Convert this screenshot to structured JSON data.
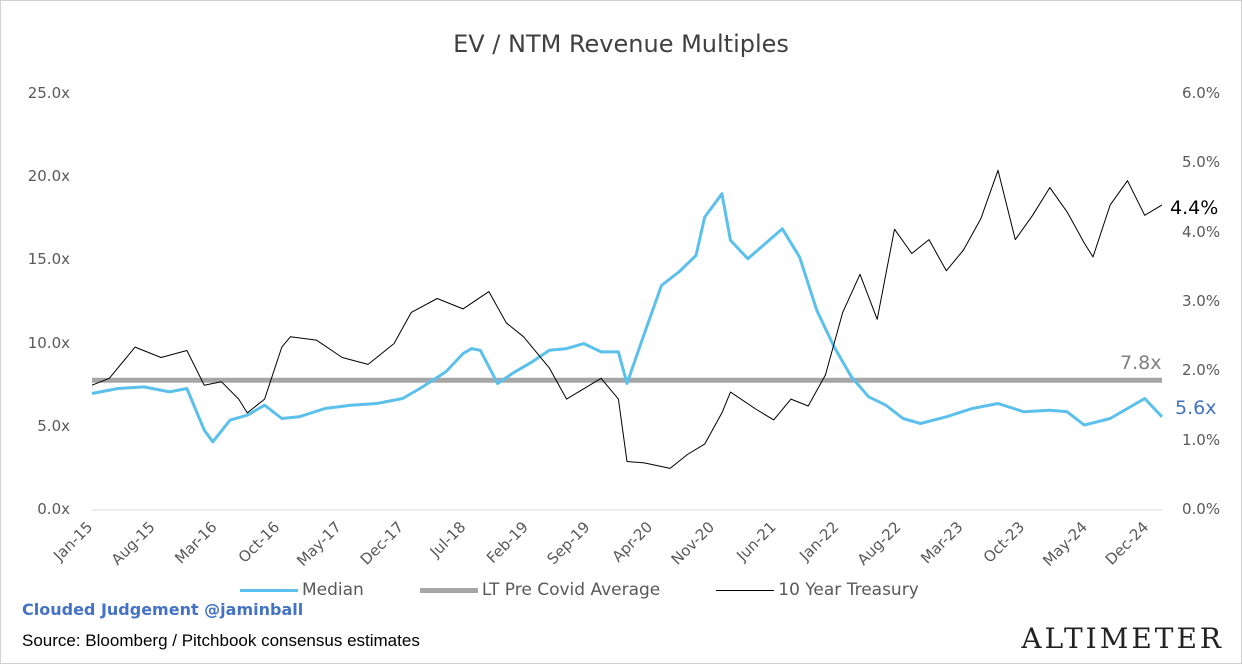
{
  "chart_data": {
    "type": "line",
    "title": "EV / NTM Revenue Multiples",
    "y_left": {
      "ticks": [
        "25.0x",
        "20.0x",
        "15.0x",
        "10.0x",
        "5.0x",
        "0.0x"
      ],
      "range": [
        0,
        25
      ]
    },
    "y_right": {
      "ticks": [
        "6.0%",
        "5.0%",
        "4.0%",
        "3.0%",
        "2.0%",
        "1.0%",
        "0.0%"
      ],
      "range": [
        0,
        6
      ]
    },
    "x_ticks": [
      "Jan-15",
      "Aug-15",
      "Mar-16",
      "Oct-16",
      "May-17",
      "Dec-17",
      "Jul-18",
      "Feb-19",
      "Sep-19",
      "Apr-20",
      "Nov-20",
      "Jun-21",
      "Jan-22",
      "Aug-22",
      "Mar-23",
      "Oct-23",
      "May-24",
      "Dec-24"
    ],
    "x_range": [
      "2015-01",
      "2025-05"
    ],
    "series": [
      {
        "name": "Median",
        "axis": "left",
        "color": "#5bc0eb",
        "end_label": "5.6x",
        "points": [
          [
            "2015-01",
            7.0
          ],
          [
            "2015-04",
            7.3
          ],
          [
            "2015-07",
            7.4
          ],
          [
            "2015-10",
            7.1
          ],
          [
            "2015-12",
            7.3
          ],
          [
            "2016-02",
            4.8
          ],
          [
            "2016-03",
            4.1
          ],
          [
            "2016-05",
            5.4
          ],
          [
            "2016-07",
            5.7
          ],
          [
            "2016-09",
            6.3
          ],
          [
            "2016-11",
            5.5
          ],
          [
            "2017-01",
            5.6
          ],
          [
            "2017-04",
            6.1
          ],
          [
            "2017-07",
            6.3
          ],
          [
            "2017-10",
            6.4
          ],
          [
            "2018-01",
            6.7
          ],
          [
            "2018-03",
            7.3
          ],
          [
            "2018-06",
            8.3
          ],
          [
            "2018-08",
            9.4
          ],
          [
            "2018-09",
            9.7
          ],
          [
            "2018-10",
            9.6
          ],
          [
            "2018-12",
            7.6
          ],
          [
            "2019-02",
            8.3
          ],
          [
            "2019-04",
            8.9
          ],
          [
            "2019-06",
            9.6
          ],
          [
            "2019-08",
            9.7
          ],
          [
            "2019-10",
            10.0
          ],
          [
            "2019-12",
            9.5
          ],
          [
            "2020-02",
            9.5
          ],
          [
            "2020-03",
            7.6
          ],
          [
            "2020-05",
            10.6
          ],
          [
            "2020-07",
            13.5
          ],
          [
            "2020-09",
            14.3
          ],
          [
            "2020-11",
            15.3
          ],
          [
            "2020-12",
            17.6
          ],
          [
            "2021-02",
            19.0
          ],
          [
            "2021-03",
            16.2
          ],
          [
            "2021-05",
            15.1
          ],
          [
            "2021-07",
            16.0
          ],
          [
            "2021-09",
            16.9
          ],
          [
            "2021-11",
            15.2
          ],
          [
            "2022-01",
            12.0
          ],
          [
            "2022-03",
            9.8
          ],
          [
            "2022-05",
            8.0
          ],
          [
            "2022-07",
            6.8
          ],
          [
            "2022-09",
            6.3
          ],
          [
            "2022-11",
            5.5
          ],
          [
            "2023-01",
            5.2
          ],
          [
            "2023-04",
            5.6
          ],
          [
            "2023-07",
            6.1
          ],
          [
            "2023-10",
            6.4
          ],
          [
            "2024-01",
            5.9
          ],
          [
            "2024-04",
            6.0
          ],
          [
            "2024-06",
            5.9
          ],
          [
            "2024-08",
            5.1
          ],
          [
            "2024-11",
            5.5
          ],
          [
            "2025-01",
            6.1
          ],
          [
            "2025-03",
            6.7
          ],
          [
            "2025-05",
            5.6
          ]
        ]
      },
      {
        "name": "LT Pre Covid Average",
        "axis": "left",
        "color": "#a6a6a6",
        "end_label": "7.8x",
        "points": [
          [
            "2015-01",
            7.8
          ],
          [
            "2025-05",
            7.8
          ]
        ]
      },
      {
        "name": "10 Year Treasury",
        "axis": "right",
        "color": "#000000",
        "end_label": "4.4%",
        "points": [
          [
            "2015-01",
            1.8
          ],
          [
            "2015-03",
            1.9
          ],
          [
            "2015-06",
            2.35
          ],
          [
            "2015-09",
            2.2
          ],
          [
            "2015-12",
            2.3
          ],
          [
            "2016-02",
            1.8
          ],
          [
            "2016-04",
            1.85
          ],
          [
            "2016-06",
            1.6
          ],
          [
            "2016-07",
            1.4
          ],
          [
            "2016-09",
            1.6
          ],
          [
            "2016-11",
            2.35
          ],
          [
            "2016-12",
            2.5
          ],
          [
            "2017-03",
            2.45
          ],
          [
            "2017-06",
            2.2
          ],
          [
            "2017-09",
            2.1
          ],
          [
            "2017-12",
            2.4
          ],
          [
            "2018-02",
            2.85
          ],
          [
            "2018-05",
            3.05
          ],
          [
            "2018-08",
            2.9
          ],
          [
            "2018-11",
            3.15
          ],
          [
            "2019-01",
            2.7
          ],
          [
            "2019-03",
            2.5
          ],
          [
            "2019-06",
            2.05
          ],
          [
            "2019-08",
            1.6
          ],
          [
            "2019-10",
            1.75
          ],
          [
            "2019-12",
            1.9
          ],
          [
            "2020-02",
            1.6
          ],
          [
            "2020-03",
            0.7
          ],
          [
            "2020-05",
            0.68
          ],
          [
            "2020-08",
            0.6
          ],
          [
            "2020-10",
            0.8
          ],
          [
            "2020-12",
            0.95
          ],
          [
            "2021-02",
            1.4
          ],
          [
            "2021-03",
            1.7
          ],
          [
            "2021-06",
            1.45
          ],
          [
            "2021-08",
            1.3
          ],
          [
            "2021-10",
            1.6
          ],
          [
            "2021-12",
            1.5
          ],
          [
            "2022-02",
            1.95
          ],
          [
            "2022-04",
            2.85
          ],
          [
            "2022-06",
            3.4
          ],
          [
            "2022-08",
            2.75
          ],
          [
            "2022-10",
            4.05
          ],
          [
            "2022-12",
            3.7
          ],
          [
            "2023-02",
            3.9
          ],
          [
            "2023-04",
            3.45
          ],
          [
            "2023-06",
            3.75
          ],
          [
            "2023-08",
            4.2
          ],
          [
            "2023-10",
            4.9
          ],
          [
            "2023-12",
            3.9
          ],
          [
            "2024-02",
            4.25
          ],
          [
            "2024-04",
            4.65
          ],
          [
            "2024-06",
            4.3
          ],
          [
            "2024-08",
            3.85
          ],
          [
            "2024-09",
            3.65
          ],
          [
            "2024-11",
            4.4
          ],
          [
            "2025-01",
            4.75
          ],
          [
            "2025-03",
            4.25
          ],
          [
            "2025-05",
            4.4
          ]
        ]
      }
    ],
    "legend": {
      "placement": "bottom"
    }
  },
  "footer": {
    "credit": "Clouded Judgement @jaminball",
    "source": "Source: Bloomberg / Pitchbook consensus estimates",
    "brand": "ALTIMETER"
  }
}
